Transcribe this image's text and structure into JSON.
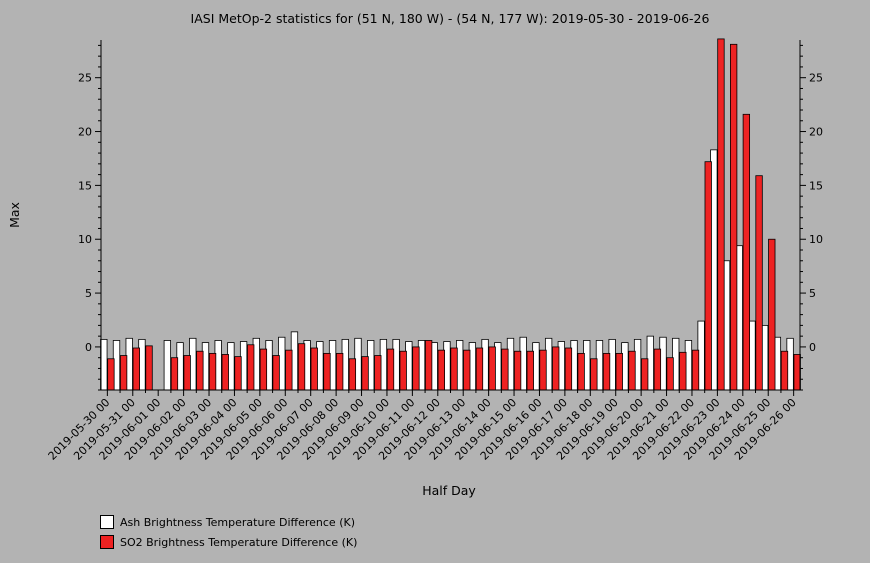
{
  "chart_data": {
    "type": "bar",
    "title": "IASI MetOp-2 statistics for (51 N, 180 W) - (54 N, 177 W): 2019-05-30 - 2019-06-26",
    "xlabel": "Half Day",
    "ylabel": "Max",
    "ylim": [
      -4,
      28.5
    ],
    "yticks": [
      0,
      5,
      10,
      15,
      20,
      25
    ],
    "xtick_labels": [
      "2019-05-30 00",
      "2019-05-31 00",
      "2019-06-01 00",
      "2019-06-02 00",
      "2019-06-03 00",
      "2019-06-04 00",
      "2019-06-05 00",
      "2019-06-06 00",
      "2019-06-07 00",
      "2019-06-08 00",
      "2019-06-09 00",
      "2019-06-10 00",
      "2019-06-11 00",
      "2019-06-12 00",
      "2019-06-13 00",
      "2019-06-14 00",
      "2019-06-15 00",
      "2019-06-16 00",
      "2019-06-17 00",
      "2019-06-18 00",
      "2019-06-19 00",
      "2019-06-20 00",
      "2019-06-21 00",
      "2019-06-22 00",
      "2019-06-23 00",
      "2019-06-24 00",
      "2019-06-25 00",
      "2019-06-26 00"
    ],
    "series": [
      {
        "name": "Ash Brightness Temperature Difference (K)",
        "color": "#ffffff",
        "values": [
          0.7,
          0.6,
          0.8,
          0.7,
          null,
          0.6,
          0.4,
          0.8,
          0.4,
          0.6,
          0.4,
          0.5,
          0.8,
          0.6,
          0.9,
          1.4,
          0.6,
          0.5,
          0.6,
          0.7,
          0.8,
          0.6,
          0.7,
          0.7,
          0.5,
          0.6,
          0.4,
          0.5,
          0.6,
          0.4,
          0.7,
          0.4,
          0.8,
          0.9,
          0.4,
          0.8,
          0.5,
          0.6,
          0.6,
          0.6,
          0.7,
          0.4,
          0.7,
          1.0,
          0.9,
          0.8,
          0.6,
          2.4,
          18.3,
          8.0,
          9.4,
          2.4,
          2.0,
          0.9,
          0.8
        ]
      },
      {
        "name": "SO2 Brightness Temperature Difference (K)",
        "color": "#ee2222",
        "values": [
          -1.1,
          -0.8,
          -0.1,
          0.1,
          null,
          -1.0,
          -0.8,
          -0.4,
          -0.6,
          -0.7,
          -0.9,
          0.2,
          -0.2,
          -0.8,
          -0.3,
          0.3,
          -0.1,
          -0.6,
          -0.6,
          -1.1,
          -0.9,
          -0.8,
          -0.2,
          -0.4,
          0.0,
          0.6,
          -0.3,
          -0.1,
          -0.3,
          -0.1,
          0.0,
          -0.2,
          -0.4,
          -0.4,
          -0.3,
          0.0,
          -0.1,
          -0.6,
          -1.1,
          -0.6,
          -0.6,
          -0.4,
          -1.1,
          -0.2,
          -1.0,
          -0.5,
          -0.3,
          17.2,
          28.6,
          28.1,
          21.6,
          15.9,
          10.0,
          -0.4,
          -0.7
        ]
      }
    ],
    "grid": false,
    "legend_position": "bottom-left"
  }
}
